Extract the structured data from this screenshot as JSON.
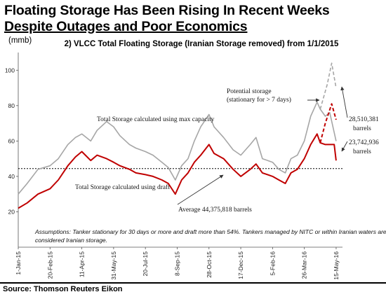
{
  "headline": {
    "line1": "Floating Storage Has Been Rising In Recent Weeks",
    "line2": "Despite Outages and Poor Economics"
  },
  "unit_label": "(mmb)",
  "source": "Source: Thomson Reuters Eikon",
  "chart_data": {
    "type": "line",
    "title": "2) VLCC Total Floating Storage (Iranian Storage removed) from 1/1/2015",
    "ylabel": "(mmb)",
    "ylim": [
      0,
      110
    ],
    "yticks": [
      20,
      40,
      60,
      80,
      100
    ],
    "x_ticks": [
      "1-Jan-15",
      "20-Feb-15",
      "11-Apr-15",
      "31-May-15",
      "20-Jul-15",
      "8-Sep-15",
      "28-Oct-15",
      "17-Dec-15",
      "5-Feb-16",
      "26-Mar-16",
      "15-May-16"
    ],
    "grid": false,
    "reference_line": {
      "value": 44.4,
      "label": "Average 44,375,818 barrels"
    },
    "series": [
      {
        "name": "Total Storage calculated using max capacity",
        "color": "#a6a6a6",
        "points": [
          [
            "2015-01-01",
            30
          ],
          [
            "2015-01-15",
            36
          ],
          [
            "2015-02-01",
            44
          ],
          [
            "2015-02-20",
            46
          ],
          [
            "2015-03-05",
            50
          ],
          [
            "2015-03-20",
            58
          ],
          [
            "2015-04-01",
            62
          ],
          [
            "2015-04-11",
            64
          ],
          [
            "2015-04-25",
            60
          ],
          [
            "2015-05-05",
            66
          ],
          [
            "2015-05-20",
            71
          ],
          [
            "2015-05-31",
            68
          ],
          [
            "2015-06-10",
            63
          ],
          [
            "2015-06-25",
            58
          ],
          [
            "2015-07-05",
            56
          ],
          [
            "2015-07-20",
            54
          ],
          [
            "2015-08-01",
            52
          ],
          [
            "2015-08-15",
            48
          ],
          [
            "2015-08-25",
            45
          ],
          [
            "2015-09-05",
            38
          ],
          [
            "2015-09-15",
            46
          ],
          [
            "2015-09-25",
            50
          ],
          [
            "2015-10-05",
            60
          ],
          [
            "2015-10-15",
            68
          ],
          [
            "2015-10-28",
            75
          ],
          [
            "2015-11-05",
            68
          ],
          [
            "2015-11-20",
            62
          ],
          [
            "2015-12-05",
            55
          ],
          [
            "2015-12-17",
            52
          ],
          [
            "2016-01-01",
            58
          ],
          [
            "2016-01-10",
            62
          ],
          [
            "2016-01-20",
            50
          ],
          [
            "2016-02-05",
            48
          ],
          [
            "2016-02-15",
            44
          ],
          [
            "2016-02-25",
            42
          ],
          [
            "2016-03-05",
            50
          ],
          [
            "2016-03-15",
            52
          ],
          [
            "2016-03-26",
            60
          ],
          [
            "2016-04-05",
            74
          ],
          [
            "2016-04-15",
            82
          ],
          [
            "2016-04-20",
            78
          ],
          [
            "2016-04-28",
            74
          ],
          [
            "2016-05-05",
            76
          ],
          [
            "2016-05-15",
            60
          ]
        ]
      },
      {
        "name": "Total Storage calculated using draft",
        "color": "#c00000",
        "points": [
          [
            "2015-01-01",
            22
          ],
          [
            "2015-01-15",
            25
          ],
          [
            "2015-02-01",
            30
          ],
          [
            "2015-02-20",
            33
          ],
          [
            "2015-03-05",
            38
          ],
          [
            "2015-03-20",
            46
          ],
          [
            "2015-04-01",
            51
          ],
          [
            "2015-04-11",
            54
          ],
          [
            "2015-04-25",
            49
          ],
          [
            "2015-05-05",
            52
          ],
          [
            "2015-05-20",
            50
          ],
          [
            "2015-05-31",
            48
          ],
          [
            "2015-06-10",
            46
          ],
          [
            "2015-06-25",
            44
          ],
          [
            "2015-07-05",
            42
          ],
          [
            "2015-07-20",
            41
          ],
          [
            "2015-08-01",
            40
          ],
          [
            "2015-08-15",
            38
          ],
          [
            "2015-08-25",
            36
          ],
          [
            "2015-09-05",
            30
          ],
          [
            "2015-09-15",
            38
          ],
          [
            "2015-09-25",
            42
          ],
          [
            "2015-10-05",
            48
          ],
          [
            "2015-10-15",
            52
          ],
          [
            "2015-10-28",
            58
          ],
          [
            "2015-11-05",
            53
          ],
          [
            "2015-11-20",
            50
          ],
          [
            "2015-12-05",
            44
          ],
          [
            "2015-12-17",
            40
          ],
          [
            "2016-01-01",
            44
          ],
          [
            "2016-01-10",
            47
          ],
          [
            "2016-01-20",
            42
          ],
          [
            "2016-02-05",
            40
          ],
          [
            "2016-02-15",
            38
          ],
          [
            "2016-02-25",
            36
          ],
          [
            "2016-03-05",
            42
          ],
          [
            "2016-03-15",
            44
          ],
          [
            "2016-03-26",
            50
          ],
          [
            "2016-04-05",
            58
          ],
          [
            "2016-04-15",
            64
          ],
          [
            "2016-04-20",
            59
          ],
          [
            "2016-04-28",
            58
          ],
          [
            "2016-05-05",
            58
          ],
          [
            "2016-05-12",
            58
          ],
          [
            "2016-05-15",
            49
          ]
        ]
      },
      {
        "name": "Potential storage max capacity",
        "color": "#a6a6a6",
        "dashed": true,
        "points": [
          [
            "2016-04-20",
            78
          ],
          [
            "2016-05-01",
            92
          ],
          [
            "2016-05-08",
            104
          ],
          [
            "2016-05-15",
            90
          ]
        ]
      },
      {
        "name": "Potential storage draft",
        "color": "#c00000",
        "dashed": true,
        "points": [
          [
            "2016-04-20",
            59
          ],
          [
            "2016-04-28",
            70
          ],
          [
            "2016-05-08",
            81
          ],
          [
            "2016-05-15",
            72
          ]
        ]
      }
    ],
    "annotations": {
      "max_capacity_label": "Total Storage calculated using max capacity",
      "draft_label": "Total Storage calculated using draft",
      "potential_label_1": "Potential storage",
      "potential_label_2": "(stationary for > 7 days)",
      "upper_value_1": "28,510,381",
      "upper_value_2": "barrels",
      "lower_value_1": "23,742,936",
      "lower_value_2": "barrels",
      "assumptions_1": "Assumptions:  Tanker stationary  for 30 days or more and draft more than 54%.  Tankers managed by NITC or within Iranian waters are",
      "assumptions_2": "considered Iranian storage."
    }
  }
}
